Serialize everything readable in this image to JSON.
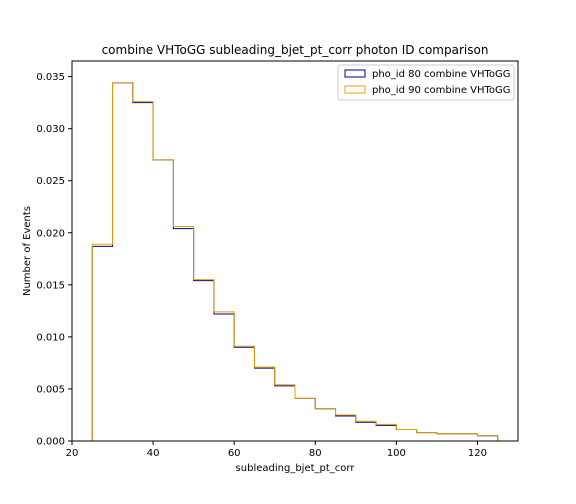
{
  "chart_data": {
    "type": "histogram",
    "title": "combine VHToGG subleading_bjet_pt_corr photon ID comparison",
    "xlabel": "subleading_bjet_pt_corr",
    "ylabel": "Number of Events",
    "xlim": [
      20,
      130
    ],
    "ylim": [
      0,
      0.0365
    ],
    "xticks": [
      20,
      40,
      60,
      80,
      100,
      120
    ],
    "yticks": [
      0.0,
      0.005,
      0.01,
      0.015,
      0.02,
      0.025,
      0.03,
      0.035
    ],
    "grid": false,
    "legend_position": "top-right",
    "bin_edges": [
      25,
      30,
      35,
      40,
      45,
      50,
      55,
      60,
      65,
      70,
      75,
      80,
      85,
      90,
      95,
      100,
      105,
      110,
      115,
      120,
      125
    ],
    "series": [
      {
        "name": "pho_id 80 combine VHToGG",
        "color": "#00008b",
        "values": [
          0.0187,
          0.0344,
          0.0325,
          0.027,
          0.0204,
          0.0154,
          0.0122,
          0.009,
          0.007,
          0.0053,
          0.0041,
          0.0031,
          0.0024,
          0.0018,
          0.0015,
          0.0011,
          0.0008,
          0.0007,
          0.0007,
          0.0005
        ]
      },
      {
        "name": "pho_id 90 combine VHToGG",
        "color": "#e8a000",
        "values": [
          0.0189,
          0.0344,
          0.0326,
          0.027,
          0.0206,
          0.0155,
          0.0124,
          0.0091,
          0.0071,
          0.0054,
          0.0041,
          0.0031,
          0.0025,
          0.0019,
          0.0016,
          0.0011,
          0.0008,
          0.0007,
          0.0007,
          0.0005
        ]
      }
    ]
  }
}
